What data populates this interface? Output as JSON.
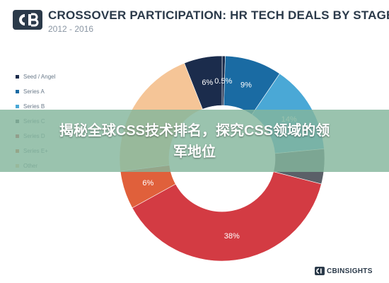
{
  "header": {
    "title": "CROSSOVER PARTICIPATION: HR TECH DEALS BY STAGE",
    "subtitle": "2012 - 2016"
  },
  "banner": {
    "line1": "揭秘全球CSS技术排名，探究CSS领域的领",
    "line2": "军地位"
  },
  "footer": {
    "brand": "CBINSIGHTS"
  },
  "colors": {
    "brand": "#2b3a4a",
    "seed": "#1b2c4c",
    "series_a": "#1a6ba3",
    "series_b": "#4aa8d6",
    "series_c": "#5b6068",
    "series_d": "#d33b43",
    "series_e": "#e0603b",
    "other": "#f5c597"
  },
  "chart_data": {
    "type": "pie",
    "title": "CROSSOVER PARTICIPATION: HR TECH DEALS BY STAGE",
    "subtitle": "2012 - 2016",
    "legend_position": "left",
    "series": [
      {
        "name": "Seed / Angel",
        "value": 0.5,
        "label": "0.5%",
        "color": "#1b2c4c"
      },
      {
        "name": "Series A",
        "value": 9,
        "label": "9%",
        "color": "#1a6ba3"
      },
      {
        "name": "Series B",
        "value": 14,
        "label": "14%",
        "color": "#4aa8d6"
      },
      {
        "name": "Series C",
        "value": 5.5,
        "label": "",
        "color": "#5b6068"
      },
      {
        "name": "Series D",
        "value": 38,
        "label": "38%",
        "color": "#d33b43"
      },
      {
        "name": "Series E+",
        "value": 6,
        "label": "6%",
        "color": "#e0603b"
      },
      {
        "name": "Other",
        "value": 21,
        "label": "",
        "color": "#f5c597"
      },
      {
        "name": "",
        "value": 6,
        "label": "6%",
        "color": "#1b2c4c"
      }
    ]
  }
}
